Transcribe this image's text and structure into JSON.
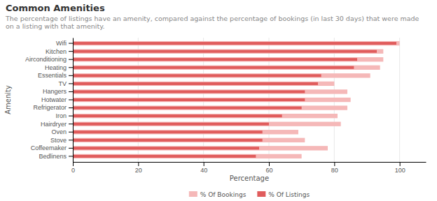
{
  "chart_data": {
    "type": "bar",
    "orientation": "horizontal",
    "title": "Common Amenities",
    "subtitle": "The percentage of listings have an amenity, compared against the percentage of bookings (in last 30 days) that were made on a listing with that amenity.",
    "xlabel": "Percentage",
    "ylabel": "Amenity",
    "categories": [
      "Wifi",
      "Kitchen",
      "Airconditioning",
      "Heating",
      "Essentials",
      "TV",
      "Hangers",
      "Hotwater",
      "Refrigerator",
      "Iron",
      "Hairdryer",
      "Oven",
      "Stove",
      "Coffeemaker",
      "Bedlinens"
    ],
    "series": [
      {
        "name": "% Of Bookings",
        "color": "#f5b8b8",
        "values": [
          100,
          95,
          95,
          94,
          91,
          80,
          84,
          85,
          84,
          81,
          82,
          69,
          71,
          78,
          70
        ]
      },
      {
        "name": "% Of Listings",
        "color": "#e05c5c",
        "values": [
          99,
          93,
          87,
          86,
          76,
          75,
          71,
          71,
          70,
          64,
          60,
          58,
          58,
          57,
          56
        ]
      }
    ],
    "xlim": [
      0,
      108
    ],
    "xticks": [
      0,
      20,
      40,
      60,
      80,
      100
    ],
    "grid": true,
    "legend": "bottom"
  }
}
